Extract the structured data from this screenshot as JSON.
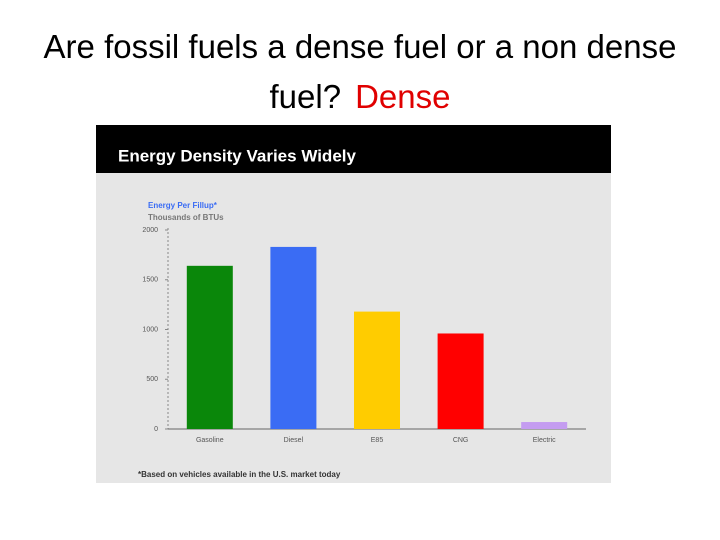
{
  "slide": {
    "question": "Are fossil fuels a dense fuel or a non dense fuel?",
    "answer": "Dense"
  },
  "chart_data": {
    "type": "bar",
    "title": "Energy Density Varies Widely",
    "series_label": "Energy Per Fillup*",
    "y_label": "Thousands of BTUs",
    "footnote": "*Based on vehicles available in the U.S. market today",
    "categories": [
      "Gasoline",
      "Diesel",
      "E85",
      "CNG",
      "Electric"
    ],
    "values": [
      1640,
      1830,
      1180,
      960,
      70
    ],
    "colors": [
      "#0a870a",
      "#3a6cf4",
      "#ffcc00",
      "#ff0000",
      "#c49cf0"
    ],
    "ylim": [
      0,
      2000
    ],
    "yticks": [
      0,
      500,
      1000,
      1500,
      2000
    ]
  }
}
